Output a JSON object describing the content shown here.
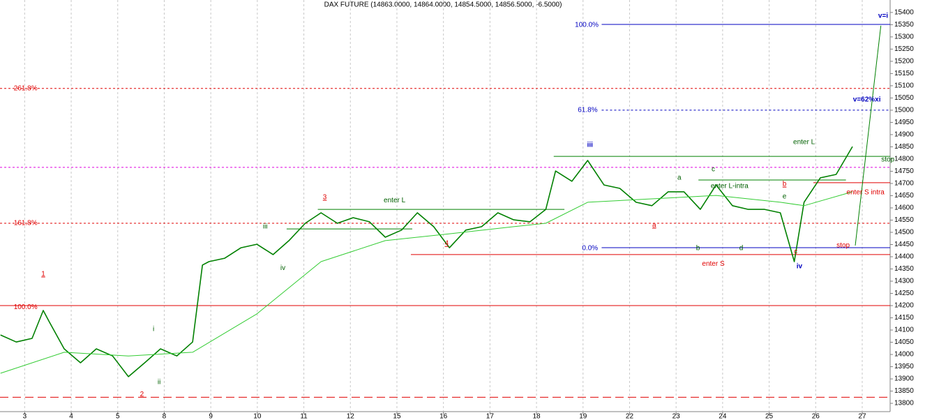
{
  "chart_data": {
    "type": "line",
    "title": "DAX FUTURE (14863.0000, 14864.0000, 14854.5000, 14856.5000, -6.5000)",
    "xlim": [
      -0.53,
      18.6
    ],
    "xticks": [
      {
        "value": 0,
        "label": "3"
      },
      {
        "value": 1,
        "label": "4"
      },
      {
        "value": 2,
        "label": "5"
      },
      {
        "value": 3,
        "label": "8"
      },
      {
        "value": 4,
        "label": "9"
      },
      {
        "value": 5,
        "label": "10"
      },
      {
        "value": 6,
        "label": "11"
      },
      {
        "value": 7,
        "label": "12"
      },
      {
        "value": 8,
        "label": "15"
      },
      {
        "value": 9,
        "label": "16"
      },
      {
        "value": 10,
        "label": "17"
      },
      {
        "value": 11,
        "label": "18"
      },
      {
        "value": 12,
        "label": "19"
      },
      {
        "value": 13,
        "label": "22"
      },
      {
        "value": 14,
        "label": "23"
      },
      {
        "value": 15,
        "label": "24"
      },
      {
        "value": 16,
        "label": "25"
      },
      {
        "value": 17,
        "label": "26"
      },
      {
        "value": 18,
        "label": "27"
      }
    ],
    "ylim": [
      13766,
      15451
    ],
    "yticks": [
      13800,
      13850,
      13900,
      13950,
      14000,
      14050,
      14100,
      14150,
      14200,
      14250,
      14300,
      14350,
      14400,
      14450,
      14500,
      14550,
      14600,
      14650,
      14700,
      14750,
      14800,
      14850,
      14900,
      14950,
      15000,
      15050,
      15100,
      15150,
      15200,
      15250,
      15300,
      15350,
      15400
    ],
    "grid": true,
    "series": [
      {
        "color": "#008000",
        "width": 1.6,
        "x": [
          -0.52,
          -0.18,
          0.16,
          0.4,
          0.52,
          0.85,
          1.2,
          1.54,
          1.89,
          2.23,
          2.58,
          2.92,
          3.27,
          3.61,
          3.82,
          3.96,
          4.3,
          4.65,
          4.99,
          5.34,
          5.68,
          6.03,
          6.37,
          6.72,
          7.06,
          7.41,
          7.75,
          8.1,
          8.44,
          8.79,
          9.13,
          9.48,
          9.82,
          10.17,
          10.51,
          10.86,
          11.2,
          11.41,
          11.76,
          12.1,
          12.45,
          12.79,
          13.14,
          13.48,
          13.83,
          14.17,
          14.52,
          14.86,
          15.21,
          15.55,
          15.9,
          16.24,
          16.54,
          16.75,
          17.1,
          17.44,
          17.79
        ],
        "values": [
          14080,
          14051,
          14066,
          14180,
          14137,
          14023,
          13966,
          14023,
          13994,
          13909,
          13966,
          14023,
          13994,
          14051,
          14366,
          14380,
          14394,
          14437,
          14451,
          14409,
          14466,
          14537,
          14580,
          14537,
          14560,
          14543,
          14480,
          14509,
          14580,
          14523,
          14437,
          14509,
          14523,
          14580,
          14551,
          14543,
          14594,
          14751,
          14709,
          14794,
          14694,
          14680,
          14623,
          14609,
          14666,
          14666,
          14594,
          14694,
          14609,
          14594,
          14594,
          14580,
          14380,
          14623,
          14723,
          14737,
          14851
        ]
      },
      {
        "color": "#33cc33",
        "width": 1,
        "x": [
          -0.52,
          0.85,
          2.23,
          3.61,
          4.99,
          6.37,
          7.75,
          9.13,
          10.51,
          11.2,
          12.1,
          13.48,
          14.86,
          16.24,
          16.75,
          17.79
        ],
        "values": [
          13923,
          14009,
          13994,
          14009,
          14166,
          14380,
          14466,
          14494,
          14523,
          14537,
          14623,
          14637,
          14651,
          14623,
          14609,
          14666
        ]
      },
      {
        "color": "#008000",
        "width": 1,
        "x": [
          17.85,
          18.4
        ],
        "values": [
          14446,
          15346
        ]
      }
    ],
    "levels": [
      {
        "value": 13825,
        "color": "#e00000",
        "style": "dashed"
      },
      {
        "value": 14200,
        "color": "#e00000",
        "style": "solid"
      },
      {
        "value": 14537,
        "color": "#e00000",
        "style": "dotted"
      },
      {
        "value": 15089,
        "color": "#e00000",
        "style": "dotted"
      },
      {
        "value": 14766,
        "color": "#e000e0",
        "style": "dotted"
      },
      {
        "value": 15351,
        "color": "#0000c0",
        "style": "solid",
        "xfrom": 12.4,
        "xto": 18.6
      },
      {
        "value": 15000,
        "color": "#0000c0",
        "style": "dotted",
        "xfrom": 12.4,
        "xto": 18.6
      },
      {
        "value": 14437,
        "color": "#0000c0",
        "style": "solid",
        "xfrom": 12.4,
        "xto": 18.6
      },
      {
        "value": 14409,
        "color": "#e00000",
        "style": "solid",
        "xfrom": 8.3,
        "xto": 18.6
      },
      {
        "value": 14594,
        "color": "#008000",
        "style": "solid",
        "xfrom": 6.3,
        "xto": 11.6
      },
      {
        "value": 14514,
        "color": "#008000",
        "style": "solid",
        "xfrom": 5.63,
        "xto": 8.33
      },
      {
        "value": 14811,
        "color": "#008000",
        "style": "solid",
        "xfrom": 11.37,
        "xto": 18.6
      },
      {
        "value": 14714,
        "color": "#008000",
        "style": "solid",
        "xfrom": 14.48,
        "xto": 17.65
      },
      {
        "value": 14703,
        "color": "#e00000",
        "style": "solid",
        "xfrom": 16.95,
        "xto": 18.6
      }
    ],
    "annotations": [
      {
        "text": "261.8%",
        "x": 0.02,
        "y": 15089,
        "color": "#e00000"
      },
      {
        "text": "161.8%",
        "x": 0.02,
        "y": 14537,
        "color": "#e00000"
      },
      {
        "text": "100.0%",
        "x": 0.02,
        "y": 14194,
        "color": "#e00000"
      },
      {
        "text": "100.0%",
        "x": 12.08,
        "y": 15349,
        "color": "#0000c0"
      },
      {
        "text": "61.8%",
        "x": 12.1,
        "y": 15000,
        "color": "#0000c0"
      },
      {
        "text": "0.0%",
        "x": 12.15,
        "y": 14434,
        "color": "#0000c0"
      },
      {
        "text": "1",
        "x": 0.4,
        "y": 14329,
        "color": "#e00000",
        "underline": true
      },
      {
        "text": "2",
        "x": 2.52,
        "y": 13837,
        "color": "#e00000",
        "underline": true
      },
      {
        "text": "i",
        "x": 2.77,
        "y": 14103,
        "color": "#006000"
      },
      {
        "text": "ii",
        "x": 2.89,
        "y": 13886,
        "color": "#006000"
      },
      {
        "text": "iii",
        "x": 5.17,
        "y": 14523,
        "color": "#006000"
      },
      {
        "text": "iv",
        "x": 5.55,
        "y": 14354,
        "color": "#006000"
      },
      {
        "text": "3",
        "x": 6.45,
        "y": 14643,
        "color": "#e00000",
        "underline": true
      },
      {
        "text": "4",
        "x": 9.07,
        "y": 14454,
        "color": "#e00000",
        "underline": true
      },
      {
        "text": "iii",
        "x": 12.15,
        "y": 14857,
        "color": "#0000c0",
        "bold": true
      },
      {
        "text": "a",
        "x": 13.53,
        "y": 14529,
        "color": "#e00000",
        "underline": true
      },
      {
        "text": "a",
        "x": 14.07,
        "y": 14723,
        "color": "#006000"
      },
      {
        "text": "b",
        "x": 14.47,
        "y": 14434,
        "color": "#006000"
      },
      {
        "text": "c",
        "x": 14.8,
        "y": 14757,
        "color": "#006000"
      },
      {
        "text": "d",
        "x": 15.4,
        "y": 14434,
        "color": "#006000"
      },
      {
        "text": "b",
        "x": 16.33,
        "y": 14697,
        "color": "#e00000",
        "underline": true
      },
      {
        "text": "e",
        "x": 16.33,
        "y": 14646,
        "color": "#006000"
      },
      {
        "text": "c",
        "x": 16.57,
        "y": 14420,
        "color": "#e00000"
      },
      {
        "text": "iv",
        "x": 16.65,
        "y": 14360,
        "color": "#0000c0",
        "bold": true
      },
      {
        "text": "v=i",
        "x": 18.45,
        "y": 15386,
        "color": "#0000c0",
        "bold": true
      },
      {
        "text": "v=62%xi",
        "x": 18.1,
        "y": 15043,
        "color": "#0000c0",
        "bold": true
      },
      {
        "text": "enter L",
        "x": 7.95,
        "y": 14631,
        "color": "#006000"
      },
      {
        "text": "enter L",
        "x": 16.75,
        "y": 14869,
        "color": "#006000"
      },
      {
        "text": "stop",
        "x": 18.55,
        "y": 14797,
        "color": "#006000"
      },
      {
        "text": "enter L-intra",
        "x": 15.15,
        "y": 14689,
        "color": "#006000"
      },
      {
        "text": "enter S intra",
        "x": 18.07,
        "y": 14663,
        "color": "#e00000"
      },
      {
        "text": "stop",
        "x": 17.59,
        "y": 14446,
        "color": "#e00000"
      },
      {
        "text": "enter S",
        "x": 14.8,
        "y": 14371,
        "color": "#e00000"
      }
    ]
  }
}
